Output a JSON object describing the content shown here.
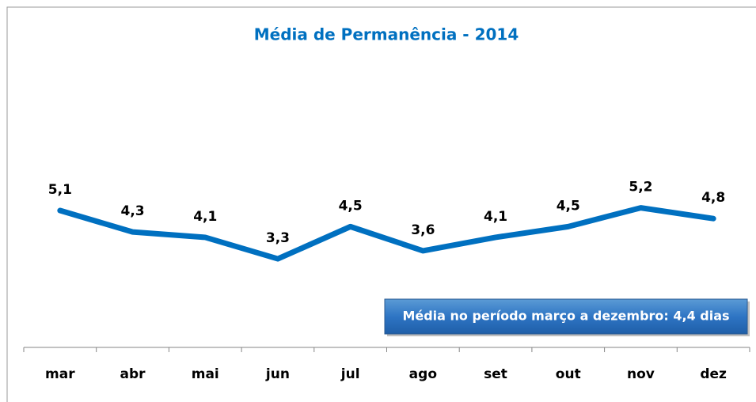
{
  "chart_data": {
    "type": "line",
    "title": "Média de Permanência - 2014",
    "categories": [
      "mar",
      "abr",
      "mai",
      "jun",
      "jul",
      "ago",
      "set",
      "out",
      "nov",
      "dez"
    ],
    "values": [
      5.1,
      4.3,
      4.1,
      3.3,
      4.5,
      3.6,
      4.1,
      4.5,
      5.2,
      4.8
    ],
    "value_labels": [
      "5,1",
      "4,3",
      "4,1",
      "3,3",
      "4,5",
      "3,6",
      "4,1",
      "4,5",
      "5,2",
      "4,8"
    ],
    "color": "#0070c0",
    "ylim": [
      0,
      12
    ],
    "annotation": "Média no período março a dezembro: 4,4 dias"
  }
}
